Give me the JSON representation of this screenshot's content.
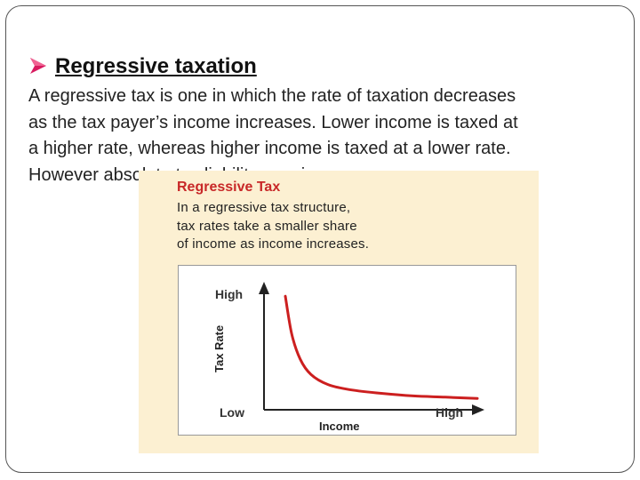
{
  "slide": {
    "heading": "Regressive taxation",
    "paragraph_lines": [
      "A regressive tax is one in which the rate of taxation decreases",
      "as the tax payer’s income increases. Lower income is taxed at",
      "a higher rate, whereas higher income is taxed at a lower rate.",
      "However absolute tax liability may increase."
    ]
  },
  "figure": {
    "title": "Regressive Tax",
    "caption_lines": [
      "In a regressive tax structure,",
      "tax rates take a smaller share",
      "of income as income increases."
    ]
  },
  "chart_data": {
    "type": "line",
    "xlabel": "Income",
    "ylabel": "Tax Rate",
    "x_tick_labels": [
      "Low",
      "High"
    ],
    "y_tick_labels": [
      "Low",
      "High"
    ],
    "grid": false,
    "xlim": [
      0,
      1
    ],
    "ylim": [
      0,
      1
    ],
    "series": [
      {
        "color": "#cc1f1f",
        "x": [
          0.1,
          0.13,
          0.17,
          0.22,
          0.3,
          0.4,
          0.55,
          0.7,
          0.85,
          1.0
        ],
        "y": [
          0.9,
          0.6,
          0.4,
          0.28,
          0.2,
          0.16,
          0.13,
          0.11,
          0.1,
          0.09
        ]
      }
    ]
  },
  "colors": {
    "figure_bg": "#fcf0d2",
    "title_red": "#c82828",
    "bullet_pink": "#d81b60"
  }
}
